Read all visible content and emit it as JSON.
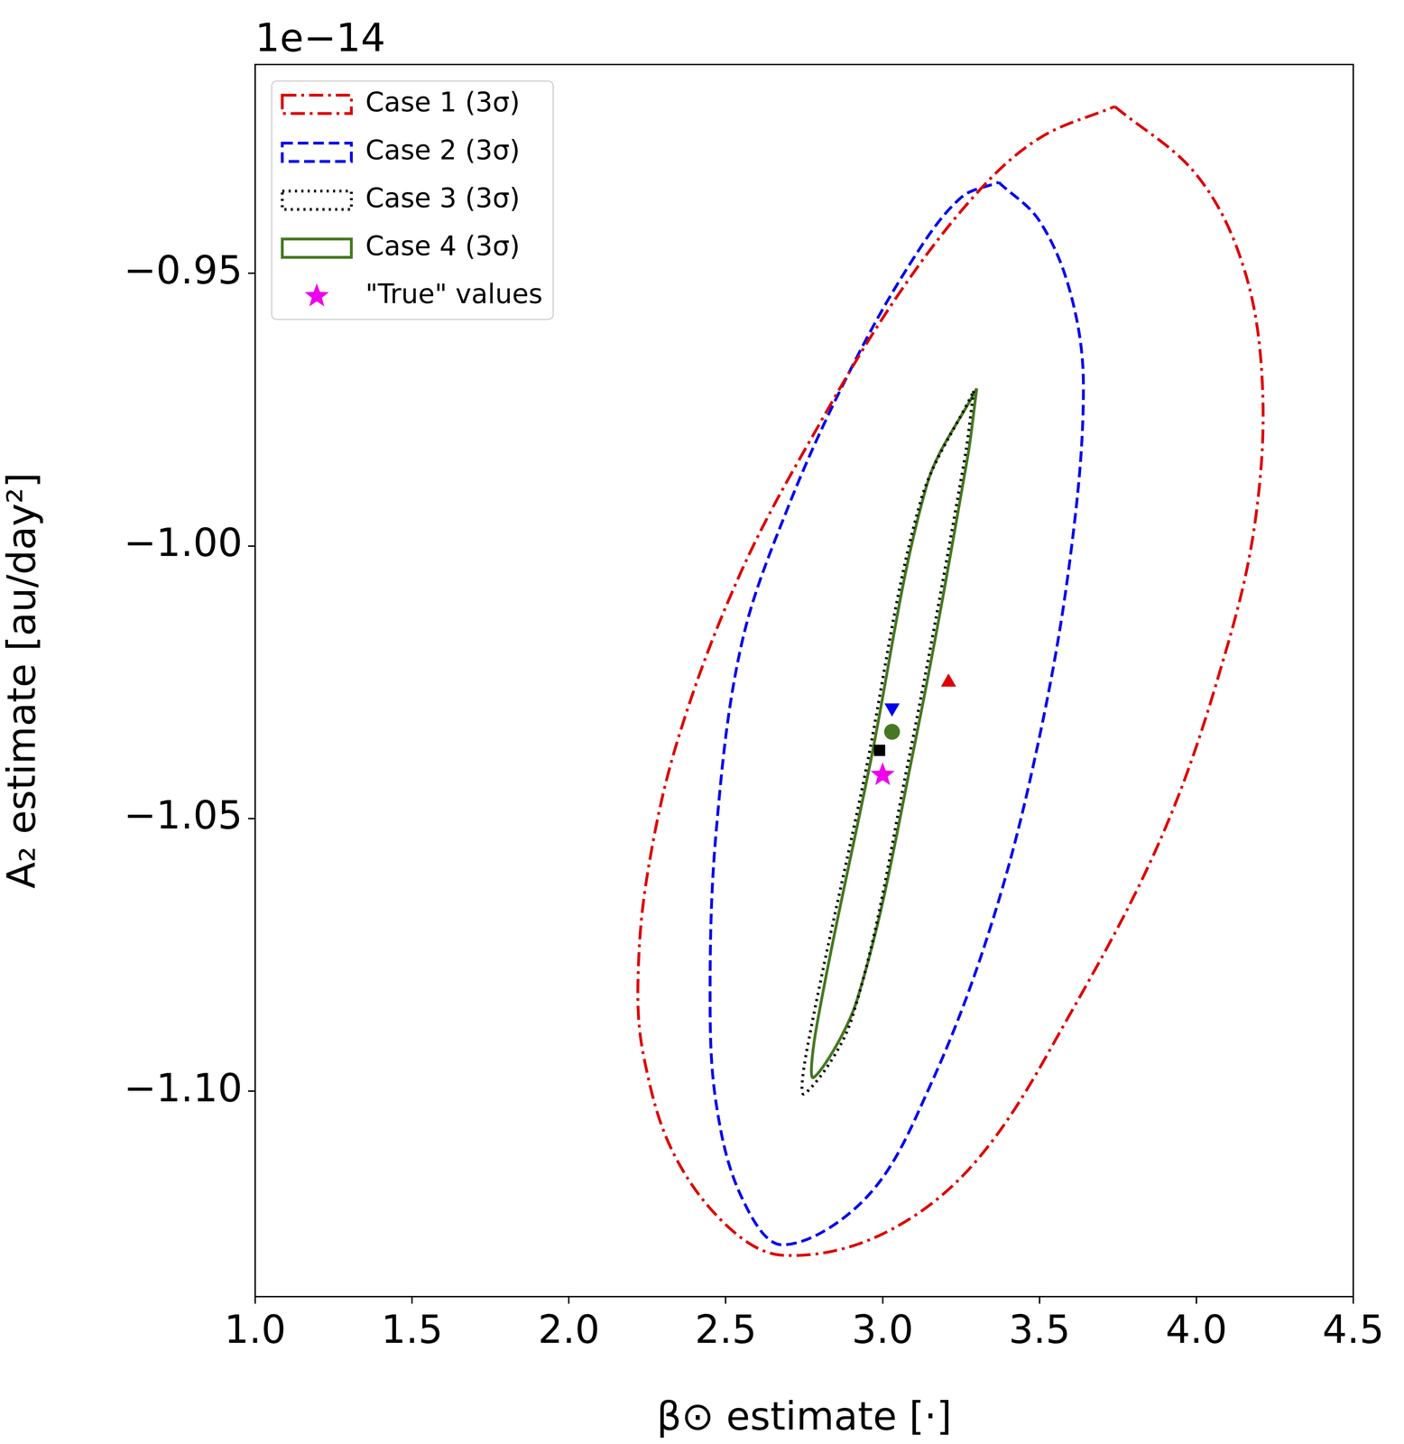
{
  "chart_data": {
    "type": "scatter",
    "x_label": "β⊙ estimate [·]",
    "y_label": "A₂ estimate [au/day²]",
    "y_offset_label": "1e−14",
    "xlim": [
      1.0,
      4.5
    ],
    "xticks": [
      {
        "value": 1.0,
        "label": "1.0"
      },
      1.5,
      {
        "value": 2.0,
        "label": "2.0"
      },
      2.5,
      {
        "value": 3.0,
        "label": "3.0"
      },
      3.5,
      {
        "value": 4.0,
        "label": "4.0"
      },
      4.5
    ],
    "ylim": [
      -1.1377,
      -0.9117
    ],
    "yticks": [
      {
        "value": -0.95,
        "label": "−0.95"
      },
      {
        "value": -1.0,
        "label": "−1.00"
      },
      {
        "value": -1.05,
        "label": "−1.05"
      },
      {
        "value": -1.1,
        "label": "−1.10"
      }
    ],
    "grid": false,
    "legend": "upper left",
    "series": [
      {
        "name": "Case 1 (3σ)",
        "type": "line",
        "color": "#dd0000",
        "line_style": "dashdot",
        "x": [
          3.74,
          4.0,
          4.15,
          4.21,
          4.19,
          4.1,
          3.9,
          3.6,
          3.3,
          3.0,
          2.68,
          2.5,
          2.33,
          2.24,
          2.22,
          2.25,
          2.35,
          2.55,
          2.8,
          3.05,
          3.3,
          3.5,
          3.74
        ],
        "y": [
          -0.9194,
          -0.9319,
          -0.9488,
          -0.9699,
          -0.9944,
          -1.0181,
          -1.0519,
          -1.0856,
          -1.1127,
          -1.1262,
          -1.1301,
          -1.1245,
          -1.111,
          -1.0941,
          -1.0806,
          -1.0603,
          -1.035,
          -1.0046,
          -0.9775,
          -0.9539,
          -0.9353,
          -0.9252,
          -0.9194
        ],
        "estimate": {
          "x": 3.21,
          "y": -1.025,
          "marker": "triangle"
        }
      },
      {
        "name": "Case 2 (3σ)",
        "type": "line",
        "color": "#0000ee",
        "line_style": "dashed",
        "x": [
          3.37,
          3.5,
          3.6,
          3.64,
          3.6,
          3.5,
          3.35,
          3.15,
          2.95,
          2.68,
          2.55,
          2.47,
          2.45,
          2.47,
          2.55,
          2.7,
          2.9,
          3.1,
          3.25,
          3.37
        ],
        "y": [
          -0.9333,
          -0.9404,
          -0.9539,
          -0.9708,
          -1.0012,
          -1.035,
          -1.0688,
          -1.0992,
          -1.1194,
          -1.1282,
          -1.1194,
          -1.1025,
          -1.0823,
          -1.052,
          -1.0181,
          -0.9927,
          -0.9674,
          -0.9471,
          -0.9361,
          -0.9333
        ],
        "estimate": {
          "x": 3.03,
          "y": -1.0297,
          "marker": "triangle_down"
        }
      },
      {
        "name": "Case 3 (3σ)",
        "type": "line",
        "color": "#000000",
        "line_style": "dotted",
        "x": [
          3.29,
          3.26,
          3.08,
          2.9,
          2.75,
          2.76,
          2.94,
          3.12,
          3.29
        ],
        "y": [
          -0.9716,
          -0.9845,
          -1.04,
          -1.087,
          -1.1005,
          -1.092,
          -1.043,
          -0.992,
          -0.9716
        ],
        "estimate": {
          "x": 2.99,
          "y": -1.0375,
          "marker": "square"
        }
      },
      {
        "name": "Case 4 (3σ)",
        "type": "line",
        "color": "#467821",
        "line_style": "solid",
        "x": [
          3.3,
          3.27,
          3.1,
          2.92,
          2.78,
          2.79,
          2.96,
          3.14,
          3.3
        ],
        "y": [
          -0.9711,
          -0.984,
          -1.037,
          -1.083,
          -1.0975,
          -1.088,
          -1.04,
          -0.989,
          -0.9711
        ],
        "estimate": {
          "x": 3.03,
          "y": -1.0341,
          "marker": "circle"
        }
      },
      {
        "name": "\"True\" values",
        "type": "scatter",
        "color": "#ee00ee",
        "marker": "star",
        "x": [
          3.0
        ],
        "y": [
          -1.042
        ]
      }
    ]
  }
}
